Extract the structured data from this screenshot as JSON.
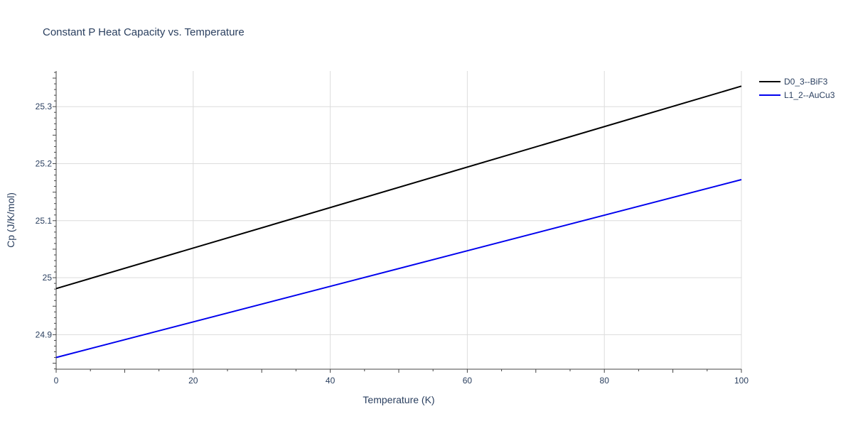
{
  "chart_data": {
    "type": "line",
    "title": "Constant P Heat Capacity vs. Temperature",
    "xlabel": "Temperature (K)",
    "ylabel": "Cp (J/K/mol)",
    "xlim": [
      0,
      100
    ],
    "ylim": [
      24.8395,
      25.3625
    ],
    "x_ticks": [
      0,
      20,
      40,
      60,
      80,
      100
    ],
    "y_ticks": [
      24.9,
      25,
      25.1,
      25.2,
      25.3
    ],
    "y_tick_labels": [
      "24.9",
      "25",
      "25.1",
      "25.2",
      "25.3"
    ],
    "grid": true,
    "legend_position": "top-right",
    "series": [
      {
        "name": "D0_3--BiF3",
        "color": "#000000",
        "x": [
          0,
          100
        ],
        "y": [
          24.981,
          25.336
        ]
      },
      {
        "name": "L1_2--AuCu3",
        "color": "#0000ee",
        "x": [
          0,
          100
        ],
        "y": [
          24.86,
          25.172
        ]
      }
    ]
  }
}
